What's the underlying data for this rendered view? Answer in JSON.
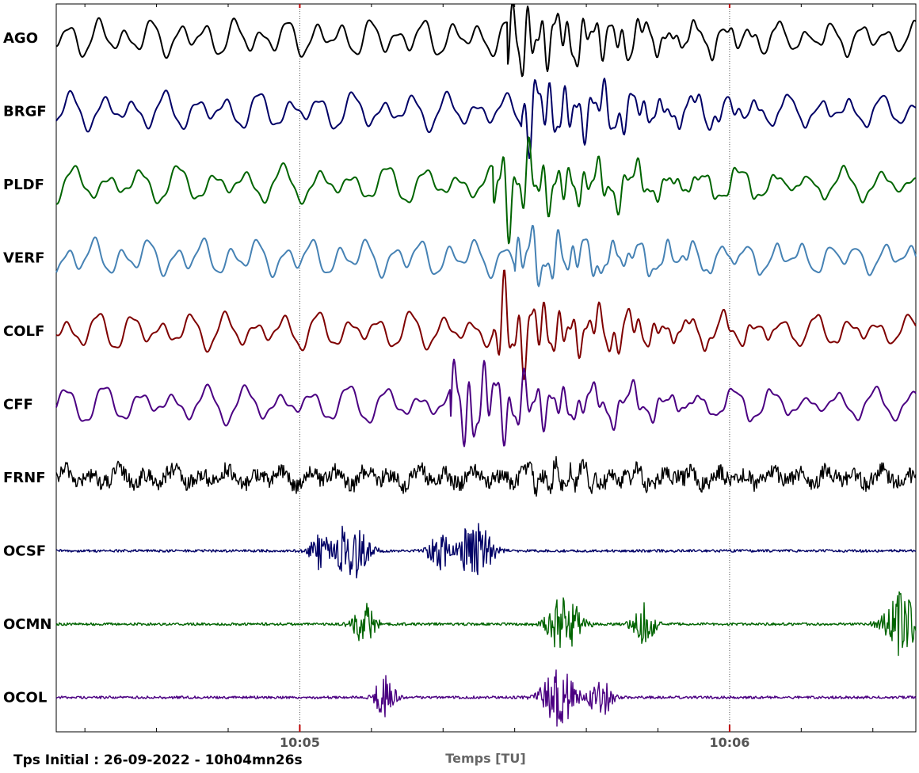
{
  "chart_data": {
    "type": "line",
    "title": "",
    "subtitle": "",
    "xlabel": "Temps [TU]",
    "ylabel": "",
    "start_time_text": "Tps Initial : 26-09-2022 - 10h04mn26s",
    "x_range_seconds": [
      0,
      120
    ],
    "major_ticks": [
      {
        "seconds": 34,
        "label": "10:05"
      },
      {
        "seconds": 94,
        "label": "10:06"
      }
    ],
    "minor_tick_seconds": [
      4,
      14,
      24,
      44,
      54,
      64,
      74,
      84,
      104,
      114
    ],
    "grid": "dotted vertical lines at major ticks",
    "legend": "none",
    "series": [
      {
        "name": "AGO",
        "color": "#000000",
        "style": "smooth",
        "onset_s": 63,
        "event_gain": 1.8,
        "noise": 0
      },
      {
        "name": "BRGF",
        "color": "#000066",
        "style": "smooth",
        "onset_s": 65,
        "event_gain": 1.8,
        "noise": 0
      },
      {
        "name": "PLDF",
        "color": "#006400",
        "style": "smooth",
        "onset_s": 61,
        "event_gain": 2.0,
        "noise": 0
      },
      {
        "name": "VERF",
        "color": "#4682b4",
        "style": "smooth",
        "onset_s": 64,
        "event_gain": 1.2,
        "noise": 0
      },
      {
        "name": "COLF",
        "color": "#7f0000",
        "style": "smooth",
        "onset_s": 61,
        "event_gain": 2.0,
        "noise": 0
      },
      {
        "name": "CFF",
        "color": "#4b0082",
        "style": "smooth",
        "onset_s": 55,
        "event_gain": 2.2,
        "noise": 0
      },
      {
        "name": "FRNF",
        "color": "#000000",
        "style": "noisy",
        "onset_s": 66,
        "event_gain": 1.6,
        "noise": 0.35
      },
      {
        "name": "OCSF",
        "color": "#000066",
        "style": "bursts",
        "bursts_s": [
          37,
          41,
          53.5,
          58.5
        ]
      },
      {
        "name": "OCMN",
        "color": "#006400",
        "style": "bursts",
        "bursts_s": [
          43,
          71,
          82,
          118
        ]
      },
      {
        "name": "OCOL",
        "color": "#4b0082",
        "style": "bursts",
        "bursts_s": [
          46,
          70,
          76
        ]
      }
    ]
  }
}
